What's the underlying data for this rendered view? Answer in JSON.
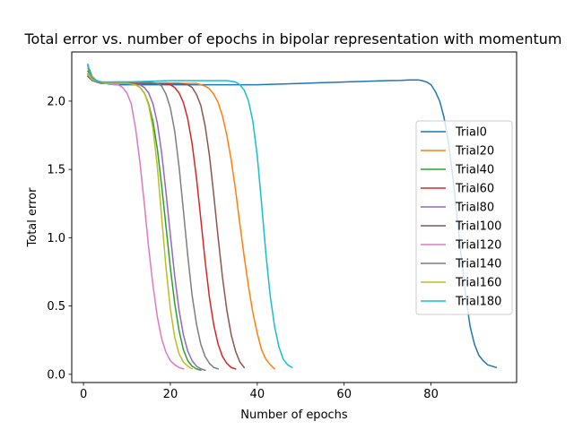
{
  "chart_data": {
    "type": "line",
    "title": "Total error vs. number of epochs in bipolar representation with momentum",
    "xlabel": "Number of epochs",
    "ylabel": "Total error",
    "xlim": [
      -2.7,
      99.7
    ],
    "ylim": [
      -0.06,
      2.36
    ],
    "xticks": [
      0,
      20,
      40,
      60,
      80
    ],
    "yticks": [
      0.0,
      0.5,
      1.0,
      1.5,
      2.0
    ],
    "xtick_labels": [
      "0",
      "20",
      "40",
      "60",
      "80"
    ],
    "ytick_labels": [
      "0.0",
      "0.5",
      "1.0",
      "1.5",
      "2.0"
    ],
    "grid": false,
    "legend_position": "center-right",
    "series": [
      {
        "name": "Trial0",
        "color": "#1f77b4",
        "x": [
          1,
          2,
          3,
          4,
          5,
          6,
          8,
          10,
          15,
          20,
          25,
          30,
          35,
          40,
          45,
          50,
          55,
          60,
          65,
          70,
          73,
          75,
          77,
          78,
          79,
          80,
          81,
          82,
          83,
          84,
          85,
          86,
          87,
          88,
          89,
          90,
          91,
          92,
          93,
          94,
          95
        ],
        "y": [
          2.26,
          2.18,
          2.15,
          2.14,
          2.13,
          2.125,
          2.12,
          2.12,
          2.12,
          2.12,
          2.12,
          2.12,
          2.12,
          2.12,
          2.125,
          2.13,
          2.135,
          2.14,
          2.145,
          2.15,
          2.152,
          2.155,
          2.155,
          2.15,
          2.14,
          2.12,
          2.07,
          2.0,
          1.88,
          1.7,
          1.45,
          1.15,
          0.85,
          0.57,
          0.35,
          0.22,
          0.14,
          0.1,
          0.07,
          0.06,
          0.05
        ]
      },
      {
        "name": "Trial20",
        "color": "#ff7f0e",
        "x": [
          1,
          2,
          3,
          4,
          5,
          7,
          10,
          15,
          20,
          23,
          25,
          26,
          27,
          28,
          29,
          30,
          31,
          32,
          33,
          34,
          35,
          36,
          37,
          38,
          39,
          40,
          41,
          42,
          43,
          44
        ],
        "y": [
          2.24,
          2.18,
          2.15,
          2.14,
          2.13,
          2.13,
          2.13,
          2.13,
          2.13,
          2.13,
          2.13,
          2.13,
          2.12,
          2.11,
          2.09,
          2.05,
          1.99,
          1.89,
          1.75,
          1.57,
          1.35,
          1.1,
          0.86,
          0.64,
          0.45,
          0.3,
          0.18,
          0.11,
          0.07,
          0.04
        ]
      },
      {
        "name": "Trial40",
        "color": "#2ca02c",
        "x": [
          1,
          2,
          3,
          4,
          5,
          7,
          10,
          12,
          13,
          14,
          15,
          16,
          17,
          18,
          19,
          20,
          21,
          22,
          23,
          24,
          25,
          26,
          27
        ],
        "y": [
          2.22,
          2.17,
          2.15,
          2.14,
          2.13,
          2.13,
          2.13,
          2.12,
          2.1,
          2.06,
          1.98,
          1.85,
          1.65,
          1.38,
          1.08,
          0.78,
          0.52,
          0.32,
          0.18,
          0.1,
          0.06,
          0.04,
          0.03
        ]
      },
      {
        "name": "Trial60",
        "color": "#d62728",
        "x": [
          1,
          2,
          3,
          4,
          5,
          7,
          10,
          15,
          18,
          20,
          21,
          22,
          23,
          24,
          25,
          26,
          27,
          28,
          29,
          30,
          31,
          32,
          33,
          34,
          35
        ],
        "y": [
          2.2,
          2.16,
          2.15,
          2.14,
          2.13,
          2.13,
          2.13,
          2.13,
          2.13,
          2.12,
          2.1,
          2.06,
          1.99,
          1.87,
          1.69,
          1.44,
          1.14,
          0.83,
          0.56,
          0.36,
          0.22,
          0.13,
          0.08,
          0.05,
          0.04
        ]
      },
      {
        "name": "Trial80",
        "color": "#9467bd",
        "x": [
          1,
          2,
          3,
          4,
          5,
          7,
          10,
          12,
          13,
          14,
          15,
          16,
          17,
          18,
          19,
          20,
          21,
          22,
          23,
          24,
          25,
          26,
          27,
          28
        ],
        "y": [
          2.2,
          2.16,
          2.15,
          2.14,
          2.13,
          2.13,
          2.13,
          2.13,
          2.12,
          2.1,
          2.06,
          1.98,
          1.84,
          1.62,
          1.33,
          1.02,
          0.72,
          0.47,
          0.29,
          0.17,
          0.1,
          0.06,
          0.04,
          0.03
        ]
      },
      {
        "name": "Trial100",
        "color": "#8c564b",
        "x": [
          1,
          2,
          3,
          4,
          5,
          7,
          10,
          15,
          20,
          22,
          24,
          25,
          26,
          27,
          28,
          29,
          30,
          31,
          32,
          33,
          34,
          35,
          36,
          37
        ],
        "y": [
          2.19,
          2.16,
          2.14,
          2.13,
          2.13,
          2.13,
          2.13,
          2.13,
          2.13,
          2.13,
          2.12,
          2.1,
          2.05,
          1.97,
          1.82,
          1.6,
          1.31,
          1.0,
          0.71,
          0.47,
          0.29,
          0.17,
          0.09,
          0.05
        ]
      },
      {
        "name": "Trial120",
        "color": "#e377c2",
        "x": [
          1,
          2,
          3,
          4,
          5,
          6,
          7,
          8,
          9,
          10,
          11,
          12,
          13,
          14,
          15,
          16,
          17,
          18,
          19,
          20,
          21,
          22,
          23
        ],
        "y": [
          2.19,
          2.16,
          2.14,
          2.13,
          2.13,
          2.13,
          2.12,
          2.12,
          2.1,
          2.06,
          1.98,
          1.8,
          1.55,
          1.25,
          0.93,
          0.65,
          0.42,
          0.26,
          0.16,
          0.1,
          0.07,
          0.05,
          0.04
        ]
      },
      {
        "name": "Trial140",
        "color": "#7f7f7f",
        "x": [
          1,
          2,
          3,
          4,
          5,
          7,
          10,
          15,
          17,
          18,
          19,
          20,
          21,
          22,
          23,
          24,
          25,
          26,
          27,
          28,
          29,
          30,
          31
        ],
        "y": [
          2.18,
          2.15,
          2.14,
          2.13,
          2.13,
          2.14,
          2.14,
          2.14,
          2.13,
          2.11,
          2.05,
          1.95,
          1.78,
          1.52,
          1.2,
          0.87,
          0.58,
          0.37,
          0.22,
          0.13,
          0.08,
          0.05,
          0.04
        ]
      },
      {
        "name": "Trial160",
        "color": "#bcbd22",
        "x": [
          1,
          2,
          3,
          4,
          5,
          7,
          10,
          12,
          13,
          14,
          15,
          16,
          17,
          18,
          19,
          20,
          21,
          22,
          23,
          24,
          25
        ],
        "y": [
          2.2,
          2.16,
          2.15,
          2.14,
          2.13,
          2.13,
          2.13,
          2.12,
          2.1,
          2.06,
          1.97,
          1.8,
          1.52,
          1.15,
          0.78,
          0.48,
          0.27,
          0.15,
          0.09,
          0.06,
          0.04
        ]
      },
      {
        "name": "Trial180",
        "color": "#17becf",
        "x": [
          1,
          1.5,
          2,
          3,
          4,
          5,
          7,
          10,
          15,
          20,
          25,
          30,
          33,
          35,
          36,
          37,
          38,
          39,
          40,
          41,
          42,
          43,
          44,
          45,
          46,
          47,
          48
        ],
        "y": [
          2.27,
          2.2,
          2.17,
          2.15,
          2.14,
          2.14,
          2.14,
          2.14,
          2.145,
          2.15,
          2.15,
          2.15,
          2.15,
          2.14,
          2.12,
          2.08,
          2.0,
          1.85,
          1.6,
          1.25,
          0.88,
          0.57,
          0.35,
          0.2,
          0.11,
          0.07,
          0.05
        ]
      }
    ]
  }
}
